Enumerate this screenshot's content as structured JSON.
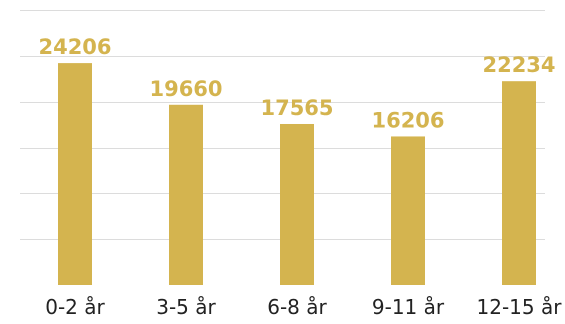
{
  "chart_data": {
    "type": "bar",
    "title": "",
    "xlabel": "",
    "ylabel": "",
    "categories": [
      "0-2 år",
      "3-5 år",
      "6-8 år",
      "9-11 år",
      "12-15 år"
    ],
    "values": [
      24206,
      19660,
      17565,
      16206,
      22234
    ],
    "ylim": [
      0,
      30000
    ],
    "grid": true,
    "legend": "none",
    "colors": {
      "bar": "#d4b44f",
      "data_label": "#d4b44f",
      "tick_label": "#222222",
      "grid": "#dcdcdc"
    }
  }
}
